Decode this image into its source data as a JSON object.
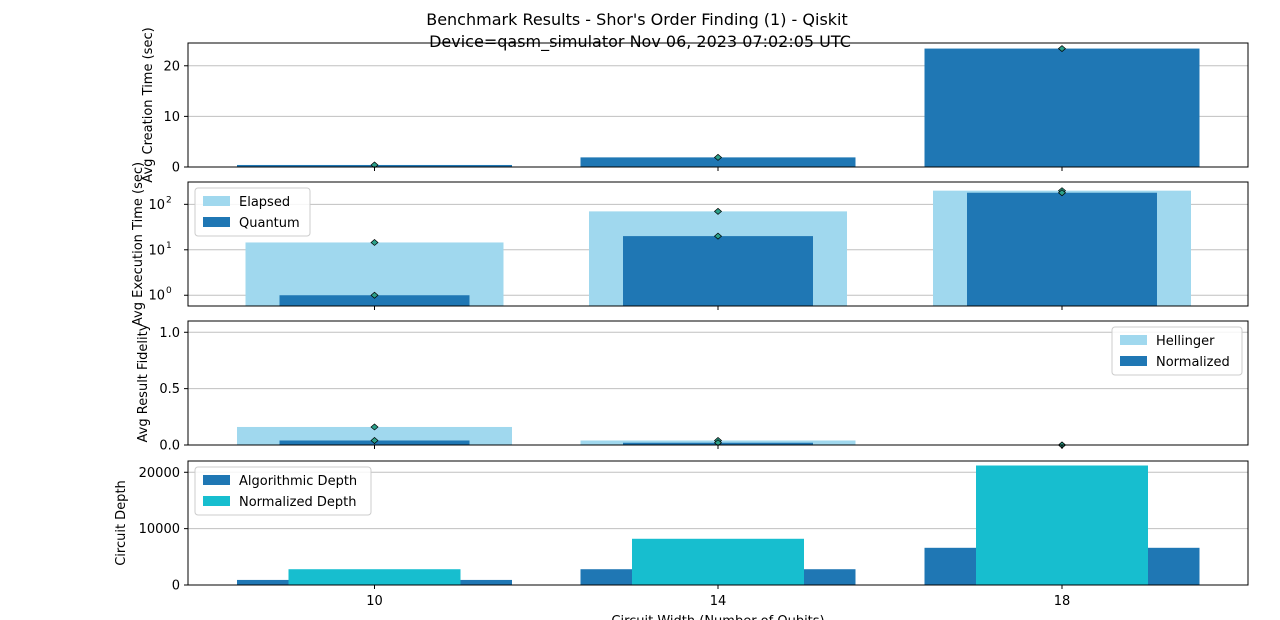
{
  "title": "Benchmark Results - Shor's Order Finding (1) - Qiskit",
  "subtitle": "Device=qasm_simulator  Nov 06, 2023 07:02:05 UTC",
  "colors": {
    "dark_blue": "#1f77b4",
    "light_blue": "#a0d8ee",
    "cyan": "#17becf",
    "marker": "#2ca089",
    "grid": "#c0c0c0"
  },
  "chart_data": [
    {
      "type": "bar",
      "categories": [
        "10",
        "14",
        "18"
      ],
      "ylabel": "Avg Creation Time (sec)",
      "ylim": [
        0,
        24.5
      ],
      "yticks": [
        0,
        10,
        20
      ],
      "grid": true,
      "series": [
        {
          "values": [
            0.4,
            1.9,
            23.4
          ],
          "color": "#1f77b4"
        }
      ]
    },
    {
      "type": "bar",
      "categories": [
        "10",
        "14",
        "18"
      ],
      "ylabel": "Avg Execution Time (sec)",
      "yscale": "log",
      "ylim": [
        0.58,
        310
      ],
      "yticks": [
        "10^0",
        "10^1",
        "10^2"
      ],
      "grid": true,
      "legend_position": "top-left",
      "series": [
        {
          "name": "Elapsed",
          "values": [
            14.5,
            70,
            200
          ],
          "color": "#a0d8ee"
        },
        {
          "name": "Quantum",
          "values": [
            1.0,
            20,
            180
          ],
          "color": "#1f77b4"
        }
      ]
    },
    {
      "type": "bar",
      "categories": [
        "10",
        "14",
        "18"
      ],
      "ylabel": "Avg Result Fidelity",
      "ylim": [
        0,
        1.1
      ],
      "yticks": [
        0.0,
        0.5,
        1.0
      ],
      "grid": true,
      "legend_position": "top-right",
      "series": [
        {
          "name": "Hellinger",
          "values": [
            0.16,
            0.04,
            0.0
          ],
          "color": "#a0d8ee"
        },
        {
          "name": "Normalized",
          "values": [
            0.04,
            0.02,
            0.0
          ],
          "color": "#1f77b4"
        }
      ]
    },
    {
      "type": "bar",
      "categories": [
        "10",
        "14",
        "18"
      ],
      "ylabel": "Circuit Depth",
      "xlabel": "Circuit Width (Number of Qubits)",
      "ylim": [
        0,
        22000
      ],
      "yticks": [
        0,
        10000,
        20000
      ],
      "grid": true,
      "legend_position": "top-left",
      "series": [
        {
          "name": "Algorithmic Depth",
          "values": [
            900,
            2800,
            6600
          ],
          "color": "#1f77b4"
        },
        {
          "name": "Normalized Depth",
          "values": [
            2800,
            8200,
            21200
          ],
          "color": "#17becf"
        }
      ]
    }
  ]
}
